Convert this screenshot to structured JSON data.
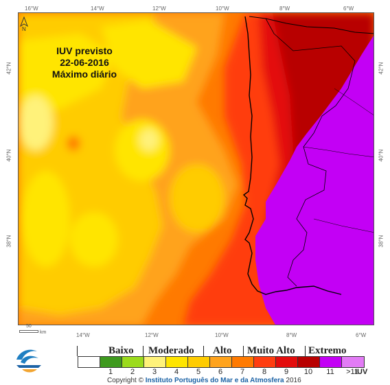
{
  "map": {
    "title_lines": [
      "IUV previsto",
      "22-06-2016",
      "Máximo diário"
    ],
    "top_longitudes": [
      "16°W",
      "14°W",
      "12°W",
      "10°W",
      "8°W",
      "6°W"
    ],
    "bottom_longitudes": [
      "14°W",
      "12°W",
      "10°W",
      "8°W",
      "6°W"
    ],
    "left_latitudes": [
      "42°N",
      "40°N",
      "38°N"
    ],
    "right_latitudes": [
      "42°N",
      "40°N",
      "38°N"
    ],
    "north_label": "N",
    "scale_labels": [
      "50",
      "km"
    ]
  },
  "legend": {
    "categories": [
      "Baixo",
      "Moderado",
      "Alto",
      "Muito Alto",
      "Extremo"
    ],
    "levels": [
      "",
      "1",
      "2",
      "3",
      "4",
      "5",
      "6",
      "7",
      "8",
      "9",
      "10",
      "11",
      ">11"
    ],
    "colors": [
      "#ffffff",
      "#3e9a1e",
      "#9bdb1c",
      "#fff27a",
      "#ffe500",
      "#ffcc00",
      "#ffa31c",
      "#ff7a00",
      "#ff3d10",
      "#e30c0c",
      "#b80000",
      "#c300f5",
      "#e27bf5"
    ],
    "unit": "IUV"
  },
  "footer": {
    "copyright_prefix": "Copyright ©",
    "organization": "Instituto Português do Mar e da Atmosfera",
    "year": "2016"
  }
}
